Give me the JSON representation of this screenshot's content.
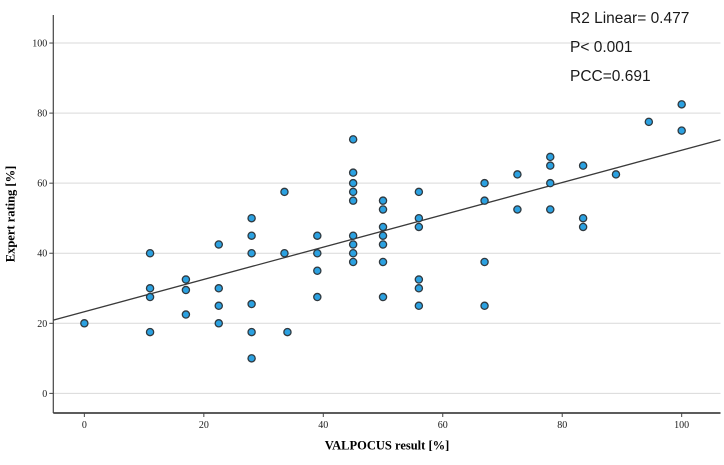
{
  "annotations": {
    "r2": "R2 Linear= 0.477",
    "p": "P< 0.001",
    "pcc": "PCC=0.691"
  },
  "chart_data": {
    "type": "scatter",
    "title": "",
    "xlabel": "VALPOCUS result [%]",
    "ylabel": "Expert rating [%]",
    "xlim": [
      -5.2,
      106.5
    ],
    "ylim": [
      -5.6,
      108
    ],
    "x_ticks": [
      0,
      20,
      40,
      60,
      80,
      100
    ],
    "y_ticks": [
      0,
      20,
      40,
      60,
      80,
      100
    ],
    "grid": "horizontal-only",
    "legend": "none",
    "points": [
      [
        0,
        20
      ],
      [
        11,
        40
      ],
      [
        11,
        30
      ],
      [
        11,
        27.5
      ],
      [
        11,
        17.5
      ],
      [
        17,
        32.5
      ],
      [
        17,
        29.5
      ],
      [
        17,
        22.5
      ],
      [
        22.5,
        42.5
      ],
      [
        22.5,
        30
      ],
      [
        22.5,
        25
      ],
      [
        22.5,
        20
      ],
      [
        28,
        50
      ],
      [
        28,
        45
      ],
      [
        28,
        40
      ],
      [
        28,
        25.5
      ],
      [
        28,
        17.5
      ],
      [
        28,
        10
      ],
      [
        33.5,
        57.5
      ],
      [
        33.5,
        40
      ],
      [
        34,
        17.5
      ],
      [
        39,
        45
      ],
      [
        39,
        40
      ],
      [
        39,
        35
      ],
      [
        39,
        27.5
      ],
      [
        45,
        72.5
      ],
      [
        45,
        63
      ],
      [
        45,
        60
      ],
      [
        45,
        57.5
      ],
      [
        45,
        55
      ],
      [
        45,
        45
      ],
      [
        45,
        42.5
      ],
      [
        45,
        40
      ],
      [
        45,
        37.5
      ],
      [
        50,
        55
      ],
      [
        50,
        52.5
      ],
      [
        50,
        47.5
      ],
      [
        50,
        45
      ],
      [
        50,
        42.5
      ],
      [
        50,
        37.5
      ],
      [
        50,
        27.5
      ],
      [
        56,
        57.5
      ],
      [
        56,
        50
      ],
      [
        56,
        47.5
      ],
      [
        56,
        32.5
      ],
      [
        56,
        30
      ],
      [
        56,
        25
      ],
      [
        67,
        60
      ],
      [
        67,
        55
      ],
      [
        67,
        37.5
      ],
      [
        67,
        25
      ],
      [
        72.5,
        62.5
      ],
      [
        72.5,
        52.5
      ],
      [
        78,
        67.5
      ],
      [
        78,
        65
      ],
      [
        78,
        60
      ],
      [
        78,
        52.5
      ],
      [
        83.5,
        65
      ],
      [
        83.5,
        50
      ],
      [
        83.5,
        47.5
      ],
      [
        89,
        62.5
      ],
      [
        94.5,
        77.5
      ],
      [
        100,
        82.5
      ],
      [
        100,
        75
      ]
    ],
    "regression_line": {
      "slope": 0.461,
      "intercept": 23.3,
      "x_start": -5.2,
      "x_end": 106.5
    },
    "colors": {
      "point_fill": "#2ba1e1",
      "point_stroke": "#30393f",
      "regression_line": "#3a3a3a",
      "grid": "#d9d9d9",
      "axis": "#444444",
      "tick_text": "#1a1a1a"
    }
  }
}
